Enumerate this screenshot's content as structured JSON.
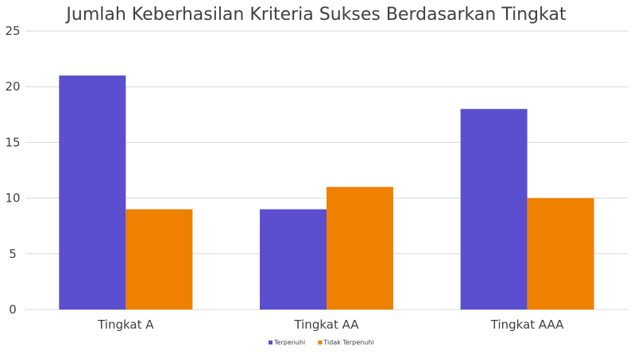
{
  "chart_data": {
    "type": "bar",
    "title": "Jumlah Keberhasilan Kriteria Sukses Berdasarkan Tingkat",
    "categories": [
      "Tingkat A",
      "Tingkat AA",
      "Tingkat AAA"
    ],
    "series": [
      {
        "name": "Terpenuhi",
        "values": [
          21,
          9,
          18
        ],
        "color": "#5b4fcf"
      },
      {
        "name": "Tidak Terpenuhi",
        "values": [
          9,
          11,
          10
        ],
        "color": "#f08000"
      }
    ],
    "ylim": [
      0,
      25
    ],
    "yticks": [
      0,
      5,
      10,
      15,
      20,
      25
    ],
    "grid": true,
    "legend_position": "bottom"
  }
}
